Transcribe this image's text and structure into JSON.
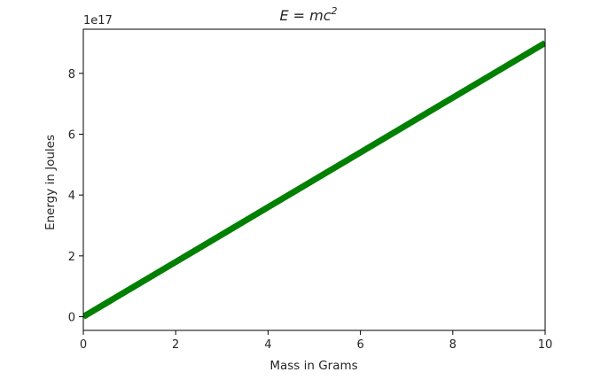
{
  "chart_data": {
    "type": "line",
    "title": {
      "prefix": "E = mc",
      "superscript": "2"
    },
    "xlabel": "Mass in Grams",
    "ylabel": "Energy in Joules",
    "y_offset_label": "1e17",
    "xlim": [
      0,
      10
    ],
    "ylim": [
      -0.45,
      9.45
    ],
    "y_scale_exponent": 17,
    "x_ticks": [
      0,
      2,
      4,
      6,
      8,
      10
    ],
    "y_ticks": [
      0,
      2,
      4,
      6,
      8
    ],
    "grid": false,
    "series": [
      {
        "color": "#008000",
        "x": [
          0,
          10
        ],
        "y": [
          0,
          9
        ]
      }
    ]
  }
}
